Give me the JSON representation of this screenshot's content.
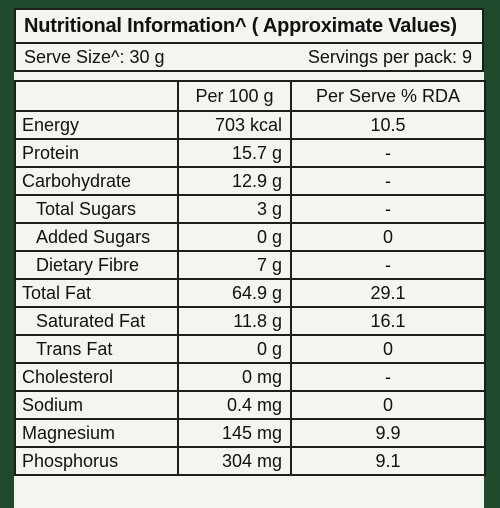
{
  "title": "Nutritional Information^ ( Approximate Values)",
  "serve_size": "Serve Size^: 30 g",
  "servings_per_pack": "Servings per pack: 9",
  "columns": [
    "",
    "Per 100 g",
    "Per Serve % RDA"
  ],
  "rows": [
    {
      "name": "Energy",
      "per100": "703 kcal",
      "rda": "10.5",
      "indent": false
    },
    {
      "name": "Protein",
      "per100": "15.7 g",
      "rda": "-",
      "indent": false
    },
    {
      "name": "Carbohydrate",
      "per100": "12.9 g",
      "rda": "-",
      "indent": false
    },
    {
      "name": "Total Sugars",
      "per100": "3 g",
      "rda": "-",
      "indent": true
    },
    {
      "name": "Added Sugars",
      "per100": "0 g",
      "rda": "0",
      "indent": true
    },
    {
      "name": "Dietary Fibre",
      "per100": "7 g",
      "rda": "-",
      "indent": true
    },
    {
      "name": "Total Fat",
      "per100": "64.9 g",
      "rda": "29.1",
      "indent": false
    },
    {
      "name": "Saturated Fat",
      "per100": "11.8 g",
      "rda": "16.1",
      "indent": true
    },
    {
      "name": "Trans Fat",
      "per100": "0 g",
      "rda": "0",
      "indent": true
    },
    {
      "name": "Cholesterol",
      "per100": "0 mg",
      "rda": "-",
      "indent": false
    },
    {
      "name": "Sodium",
      "per100": "0.4 mg",
      "rda": "0",
      "indent": false
    },
    {
      "name": "Magnesium",
      "per100": "145 mg",
      "rda": "9.9",
      "indent": false
    },
    {
      "name": "Phosphorus",
      "per100": "304 mg",
      "rda": "9.1",
      "indent": false
    }
  ],
  "colors": {
    "background": "#1f4a2c",
    "panel": "#f4f5ef",
    "border": "#1d1d1d"
  }
}
